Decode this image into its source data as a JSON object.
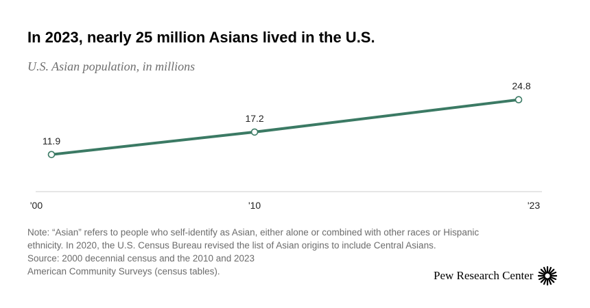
{
  "title": "In 2023, nearly 25 million Asians lived in the U.S.",
  "subtitle": "U.S. Asian population, in millions",
  "colors": {
    "line": "#3b7a64",
    "marker_fill": "#ffffff",
    "axis": "#cccccc",
    "text": "#222222"
  },
  "chart_data": {
    "type": "line",
    "title": "In 2023, nearly 25 million Asians lived in the U.S.",
    "subtitle": "U.S. Asian population, in millions",
    "x": [
      2000,
      2010,
      2023
    ],
    "x_tick_labels": [
      "'00",
      "'10",
      "'23"
    ],
    "series": [
      {
        "values": [
          11.9,
          17.2,
          24.8
        ],
        "data_labels": [
          "11.9",
          "17.2",
          "24.8"
        ]
      }
    ],
    "xlabel": "",
    "ylabel": "",
    "ylim": [
      0,
      27
    ],
    "grid": false,
    "legend": "none"
  },
  "notes": {
    "line1": "Note: “Asian” refers to people who self-identify as Asian, either alone or combined with other races or Hispanic",
    "line2": "ethnicity. In 2020, the U.S. Census Bureau revised the list of Asian origins to include Central Asians.",
    "line3": "Source: 2000 decennial census and the 2010 and 2023",
    "line4": "American Community Surveys (census tables)."
  },
  "logo": {
    "text": "Pew Research Center",
    "icon": "pew-sunburst-icon"
  }
}
